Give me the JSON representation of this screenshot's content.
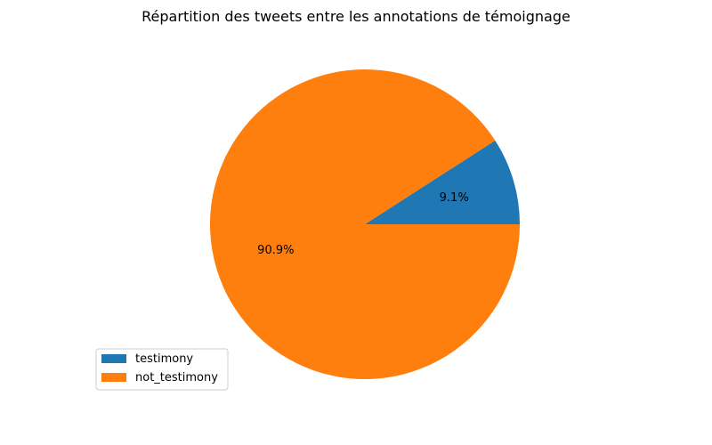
{
  "chart_data": {
    "type": "pie",
    "title": "Répartition des tweets entre les annotations de témoignage",
    "slices": [
      {
        "label": "testimony",
        "value": 9.1,
        "display": "9.1%",
        "color": "#1f77b4"
      },
      {
        "label": "not_testimony",
        "value": 90.9,
        "display": "90.9%",
        "color": "#ff7f0e"
      }
    ],
    "start_angle": 0,
    "direction": "counterclockwise",
    "legend_placement": "lower-left"
  }
}
